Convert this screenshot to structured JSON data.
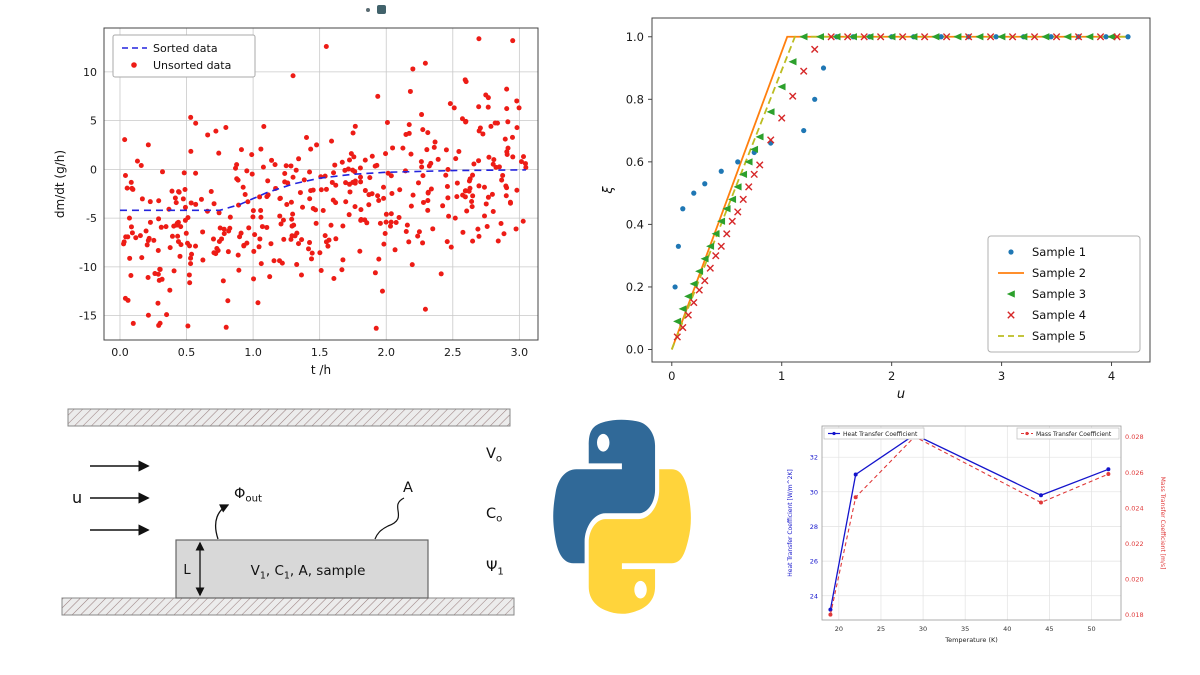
{
  "page": {
    "background": "#ffffff"
  },
  "icons": {
    "artifact": "cropped-page-artifact",
    "python": "python-logo-icon"
  },
  "python_logo": {
    "colors": {
      "blue": "#306998",
      "yellow": "#FFD43B"
    }
  },
  "chart_data": [
    {
      "id": "dmdt-scatter",
      "type": "scatter",
      "title": "",
      "xlabel": "t /h",
      "ylabel": "dm/dt (g/h)",
      "xlim": [
        -0.12,
        3.14
      ],
      "ylim": [
        -17.5,
        14.5
      ],
      "xticks": [
        0.0,
        0.5,
        1.0,
        1.5,
        2.0,
        2.5,
        3.0
      ],
      "yticks": [
        -15,
        -10,
        -5,
        0,
        5,
        10
      ],
      "grid": true,
      "legend": {
        "position": "upper-left"
      },
      "series": [
        {
          "name": "Sorted data",
          "color": "#2424dd",
          "style": "dashed-line",
          "x": [
            0.0,
            0.75,
            0.9,
            1.1,
            1.3,
            1.5,
            1.75,
            2.0,
            2.5,
            3.05
          ],
          "y": [
            -4.2,
            -4.2,
            -3.6,
            -2.4,
            -1.5,
            -0.9,
            -0.5,
            -0.3,
            -0.12,
            -0.05
          ]
        },
        {
          "name": "Unsorted data",
          "color": "#ed1c16",
          "style": "scatter-random",
          "spec": {
            "n": 430,
            "seed": 11,
            "xmin": 0.02,
            "xmax": 3.05,
            "trend_start": -7.6,
            "trend_end": 0.4,
            "noise_sd": 4.3,
            "clip": [
              -16.3,
              13.4
            ]
          },
          "extra_points": [
            [
              1.55,
              12.6
            ],
            [
              2.95,
              13.2
            ],
            [
              1.3,
              9.6
            ],
            [
              2.2,
              10.3
            ],
            [
              2.6,
              9.0
            ],
            [
              0.1,
              -15.8
            ],
            [
              0.35,
              -14.9
            ]
          ]
        }
      ]
    },
    {
      "id": "xi-samples",
      "type": "line-scatter",
      "title": "",
      "xlabel": "u",
      "ylabel": "ξ",
      "xlim": [
        -0.18,
        4.35
      ],
      "ylim": [
        -0.04,
        1.06
      ],
      "xticks": [
        0,
        1,
        2,
        3,
        4
      ],
      "yticks": [
        0.0,
        0.2,
        0.4,
        0.6,
        0.8,
        1.0
      ],
      "grid": false,
      "legend": {
        "position": "lower-right"
      },
      "series": [
        {
          "name": "Sample 1",
          "color": "#1f77b4",
          "marker": "dot",
          "x": [
            0.03,
            0.06,
            0.1,
            0.2,
            0.3,
            0.45,
            0.6,
            0.75,
            0.9,
            1.2,
            1.3,
            1.38,
            1.5,
            1.65,
            1.8,
            2.0,
            2.2,
            2.45,
            2.7,
            2.95,
            3.2,
            3.45,
            3.7,
            3.95,
            4.15
          ],
          "y": [
            0.2,
            0.33,
            0.45,
            0.5,
            0.53,
            0.57,
            0.6,
            0.63,
            0.66,
            0.7,
            0.8,
            0.9,
            1.0,
            1.0,
            1.0,
            1.0,
            1.0,
            1.0,
            1.0,
            1.0,
            1.0,
            1.0,
            1.0,
            1.0,
            1.0
          ]
        },
        {
          "name": "Sample 2",
          "color": "#ff7f0e",
          "line": "solid",
          "x": [
            0.0,
            1.05,
            4.15
          ],
          "y": [
            0.0,
            1.0,
            1.0
          ]
        },
        {
          "name": "Sample 3",
          "color": "#2ca02c",
          "marker": "tri",
          "x": [
            0.05,
            0.1,
            0.15,
            0.2,
            0.25,
            0.3,
            0.35,
            0.4,
            0.45,
            0.5,
            0.55,
            0.6,
            0.65,
            0.7,
            0.75,
            0.8,
            0.9,
            1.0,
            1.1,
            1.2,
            1.35,
            1.5,
            1.65,
            1.8,
            2.0,
            2.2,
            2.4,
            2.6,
            2.8,
            3.0,
            3.2,
            3.4,
            3.6,
            3.8,
            4.0
          ],
          "y": [
            0.09,
            0.13,
            0.17,
            0.21,
            0.25,
            0.29,
            0.33,
            0.37,
            0.41,
            0.45,
            0.48,
            0.52,
            0.56,
            0.6,
            0.64,
            0.68,
            0.76,
            0.84,
            0.92,
            1.0,
            1.0,
            1.0,
            1.0,
            1.0,
            1.0,
            1.0,
            1.0,
            1.0,
            1.0,
            1.0,
            1.0,
            1.0,
            1.0,
            1.0,
            1.0
          ]
        },
        {
          "name": "Sample 4",
          "color": "#d62728",
          "marker": "x",
          "x": [
            0.05,
            0.1,
            0.15,
            0.2,
            0.25,
            0.3,
            0.35,
            0.4,
            0.45,
            0.5,
            0.55,
            0.6,
            0.65,
            0.7,
            0.75,
            0.8,
            0.9,
            1.0,
            1.1,
            1.2,
            1.3,
            1.45,
            1.6,
            1.75,
            1.9,
            2.1,
            2.3,
            2.5,
            2.7,
            2.9,
            3.1,
            3.3,
            3.5,
            3.7,
            3.9,
            4.05
          ],
          "y": [
            0.04,
            0.07,
            0.11,
            0.15,
            0.19,
            0.22,
            0.26,
            0.3,
            0.33,
            0.37,
            0.41,
            0.44,
            0.48,
            0.52,
            0.56,
            0.59,
            0.67,
            0.74,
            0.81,
            0.89,
            0.96,
            1.0,
            1.0,
            1.0,
            1.0,
            1.0,
            1.0,
            1.0,
            1.0,
            1.0,
            1.0,
            1.0,
            1.0,
            1.0,
            1.0,
            1.0
          ]
        },
        {
          "name": "Sample 5",
          "color": "#bcbd22",
          "line": "dashed",
          "x": [
            0.0,
            1.12,
            4.15
          ],
          "y": [
            0.0,
            1.0,
            1.0
          ]
        }
      ]
    },
    {
      "id": "transfer-coefficients",
      "type": "dual-axis-line",
      "title": "",
      "xlabel": "Temperature (K)",
      "left_ylabel": "Heat Transfer Coefficient [W/m^2K]",
      "right_ylabel": "Mass Transfer Coefficient [m/s]",
      "x": [
        19,
        22,
        29,
        44,
        52
      ],
      "xlim": [
        18,
        53.5
      ],
      "xticks": [
        20,
        25,
        30,
        35,
        40,
        45,
        50
      ],
      "left": {
        "lim": [
          22.6,
          33.8
        ],
        "ticks": [
          24,
          26,
          28,
          30,
          32
        ],
        "color": "#1414cc"
      },
      "right": {
        "lim": [
          0.0177,
          0.0286
        ],
        "ticks": [
          0.018,
          0.02,
          0.022,
          0.024,
          0.026,
          0.028
        ],
        "color": "#e03a3a"
      },
      "grid": true,
      "series": [
        {
          "name": "Heat Transfer Coefficient",
          "axis": "left",
          "color": "#1414cc",
          "style": "solid",
          "values": [
            23.2,
            31.0,
            33.3,
            29.8,
            31.3
          ]
        },
        {
          "name": "Mass Transfer Coefficient",
          "axis": "right",
          "color": "#e03a3a",
          "style": "dashed",
          "values": [
            0.018,
            0.0246,
            0.028,
            0.0243,
            0.0259
          ]
        }
      ]
    }
  ],
  "diagram": {
    "u_label": "u",
    "l_label": "L",
    "a_label": "A",
    "phi_label": [
      {
        "t": "Φ"
      },
      {
        "t": "out",
        "sub": true
      }
    ],
    "box_label": [
      {
        "t": "V"
      },
      {
        "t": "1",
        "sub": true
      },
      {
        "t": ", C"
      },
      {
        "t": "1",
        "sub": true
      },
      {
        "t": ", A, sample"
      }
    ],
    "right_labels": [
      [
        {
          "t": "V"
        },
        {
          "t": "o",
          "sub": true
        }
      ],
      [
        {
          "t": "C"
        },
        {
          "t": "o",
          "sub": true
        }
      ],
      [
        {
          "t": "Ψ"
        },
        {
          "t": "1",
          "sub": true
        }
      ]
    ],
    "colors": {
      "box_fill": "#d8d8d8",
      "box_stroke": "#666666",
      "wall_fill": "#ececec",
      "hatch": "#9a8080"
    }
  }
}
